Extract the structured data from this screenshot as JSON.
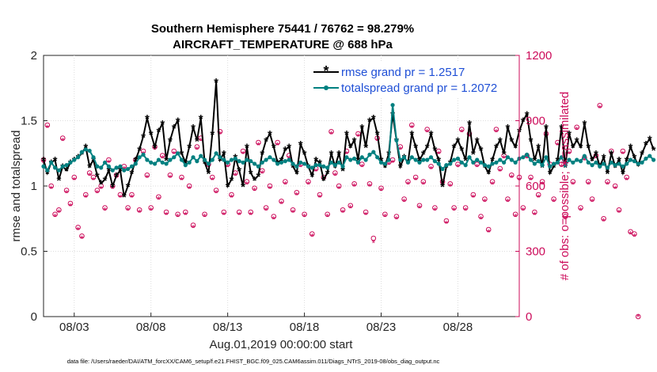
{
  "chart_data": {
    "type": "line",
    "title": "Southern Hemisphere 75441 / 76762 = 98.279%",
    "subtitle": "AIRCRAFT_TEMPERATURE @ 688 hPa",
    "xlabel": "Aug.01,2019 00:00:00 start",
    "ylabel": "rmse and totalspread",
    "ylabel_right": "# of obs: o=possible; ∗=assimilated",
    "footer": "data file: /Users/raeder/DAI/ATM_forcXX/CAM6_setup/f.e21.FHIST_BGC.f09_025.CAM6assim.011/Diags_NTrS_2019-08/obs_diag_output.nc",
    "x_start_day": 1.0,
    "step_days": 0.25,
    "xlim": [
      1.0,
      32.0
    ],
    "ylim": [
      0,
      2
    ],
    "ylim_right": [
      0,
      1200
    ],
    "x_tick_labels": [
      "08/03",
      "08/08",
      "08/13",
      "08/18",
      "08/23",
      "08/28"
    ],
    "x_tick_days": [
      3,
      8,
      13,
      18,
      23,
      28
    ],
    "y_ticks": [
      "0",
      "0.5",
      "1",
      "1.5",
      "2"
    ],
    "y_ticks_right": [
      "0",
      "300",
      "600",
      "900",
      "1200"
    ],
    "legend_position": "top-right",
    "series": [
      {
        "name": "rmse grand pr = 1.2517",
        "color": "#000000",
        "values": [
          1.2,
          1.1,
          1.18,
          1.2,
          1.05,
          1.15,
          1.12,
          1.18,
          1.2,
          1.22,
          1.25,
          1.3,
          1.15,
          1.2,
          1.08,
          1.02,
          1.05,
          1.12,
          1.0,
          1.08,
          1.12,
          0.92,
          1.0,
          1.1,
          1.2,
          1.28,
          1.38,
          1.52,
          1.4,
          1.3,
          1.42,
          1.48,
          1.2,
          1.35,
          1.45,
          1.5,
          1.25,
          1.18,
          1.3,
          1.45,
          1.35,
          1.52,
          1.18,
          1.1,
          1.4,
          1.8,
          1.2,
          1.25,
          1.0,
          1.05,
          1.22,
          1.12,
          1.0,
          1.3,
          1.1,
          1.05,
          1.08,
          1.25,
          1.35,
          1.4,
          1.3,
          1.18,
          1.2,
          1.28,
          1.3,
          1.15,
          1.1,
          1.32,
          1.25,
          1.15,
          1.08,
          1.2,
          1.18,
          1.05,
          1.1,
          1.25,
          1.15,
          1.25,
          1.12,
          1.4,
          1.3,
          1.35,
          1.2,
          1.45,
          1.3,
          1.5,
          1.52,
          1.4,
          1.2,
          1.15,
          1.25,
          1.55,
          1.35,
          1.15,
          1.22,
          1.18,
          1.4,
          1.3,
          1.2,
          1.25,
          1.3,
          1.4,
          1.28,
          1.2,
          1.0,
          1.15,
          1.18,
          1.3,
          1.35,
          1.28,
          1.2,
          1.48,
          1.25,
          1.35,
          1.28,
          1.15,
          1.1,
          1.2,
          1.3,
          1.35,
          1.25,
          1.45,
          1.35,
          1.3,
          1.42,
          1.5,
          1.55,
          1.35,
          1.2,
          1.3,
          1.15,
          1.45,
          1.1,
          1.15,
          1.2,
          1.45,
          1.15,
          1.4,
          1.3,
          1.35,
          1.3,
          1.48,
          1.3,
          1.2,
          1.25,
          1.15,
          1.22,
          1.1,
          1.25,
          1.15,
          1.2,
          1.1,
          1.2,
          1.3,
          1.22,
          1.16,
          1.25,
          1.32,
          1.36,
          1.28
        ]
      },
      {
        "name": "totalspread grand pr = 1.2072",
        "color": "#008080",
        "values": [
          1.15,
          1.12,
          1.18,
          1.14,
          1.12,
          1.15,
          1.16,
          1.18,
          1.2,
          1.22,
          1.26,
          1.28,
          1.27,
          1.22,
          1.15,
          1.14,
          1.18,
          1.15,
          1.12,
          1.14,
          1.15,
          1.12,
          1.13,
          1.15,
          1.17,
          1.22,
          1.24,
          1.2,
          1.18,
          1.17,
          1.2,
          1.18,
          1.17,
          1.2,
          1.22,
          1.25,
          1.2,
          1.16,
          1.18,
          1.22,
          1.19,
          1.23,
          1.2,
          1.17,
          1.2,
          1.25,
          1.22,
          1.2,
          1.18,
          1.2,
          1.21,
          1.19,
          1.18,
          1.2,
          1.19,
          1.17,
          1.15,
          1.18,
          1.2,
          1.22,
          1.2,
          1.17,
          1.18,
          1.19,
          1.2,
          1.17,
          1.15,
          1.18,
          1.17,
          1.15,
          1.14,
          1.16,
          1.16,
          1.15,
          1.14,
          1.18,
          1.16,
          1.18,
          1.15,
          1.22,
          1.2,
          1.21,
          1.18,
          1.22,
          1.2,
          1.24,
          1.26,
          1.22,
          1.18,
          1.17,
          1.2,
          1.62,
          1.35,
          1.2,
          1.22,
          1.18,
          1.22,
          1.2,
          1.18,
          1.2,
          1.2,
          1.22,
          1.19,
          1.17,
          1.13,
          1.16,
          1.17,
          1.2,
          1.21,
          1.18,
          1.16,
          1.22,
          1.18,
          1.2,
          1.18,
          1.16,
          1.15,
          1.17,
          1.18,
          1.2,
          1.18,
          1.22,
          1.2,
          1.18,
          1.21,
          1.22,
          1.24,
          1.2,
          1.17,
          1.19,
          1.16,
          1.22,
          1.15,
          1.17,
          1.18,
          1.22,
          1.16,
          1.2,
          1.18,
          1.2,
          1.19,
          1.23,
          1.18,
          1.16,
          1.18,
          1.15,
          1.17,
          1.14,
          1.18,
          1.16,
          1.17,
          1.15,
          1.17,
          1.2,
          1.19,
          1.17,
          1.18,
          1.21,
          1.23,
          1.2
        ]
      }
    ],
    "obs_series": [
      {
        "name": "possible",
        "marker": "o",
        "axis": "right",
        "color": "#cc0b5a",
        "values": [
          720,
          880,
          600,
          470,
          490,
          820,
          580,
          520,
          640,
          410,
          370,
          560,
          660,
          640,
          580,
          600,
          500,
          720,
          600,
          650,
          560,
          690,
          500,
          560,
          720,
          490,
          760,
          650,
          500,
          780,
          550,
          740,
          480,
          650,
          760,
          470,
          640,
          480,
          600,
          420,
          780,
          820,
          470,
          700,
          640,
          580,
          850,
          480,
          700,
          560,
          660,
          480,
          760,
          620,
          480,
          590,
          800,
          670,
          500,
          600,
          460,
          800,
          530,
          620,
          740,
          490,
          570,
          700,
          470,
          620,
          380,
          680,
          560,
          640,
          470,
          850,
          660,
          600,
          490,
          760,
          510,
          610,
          840,
          700,
          480,
          610,
          360,
          820,
          590,
          470,
          710,
          720,
          460,
          780,
          540,
          620,
          880,
          640,
          510,
          620,
          860,
          690,
          500,
          760,
          620,
          440,
          610,
          500,
          700,
          860,
          500,
          840,
          560,
          700,
          460,
          540,
          400,
          620,
          860,
          680,
          740,
          540,
          650,
          470,
          640,
          500,
          740,
          640,
          480,
          560,
          620,
          840,
          700,
          540,
          800,
          700,
          460,
          760,
          620,
          870,
          500,
          730,
          620,
          540,
          740,
          970,
          450,
          620,
          760,
          600,
          490,
          760,
          640,
          390,
          380,
          0
        ]
      },
      {
        "name": "assimilated",
        "marker": "*",
        "axis": "right",
        "color": "#cc0b5a",
        "values": [
          710,
          870,
          590,
          460,
          480,
          810,
          570,
          510,
          630,
          400,
          360,
          550,
          650,
          630,
          570,
          590,
          490,
          710,
          590,
          640,
          550,
          680,
          490,
          550,
          710,
          480,
          750,
          640,
          490,
          770,
          540,
          730,
          470,
          640,
          750,
          460,
          630,
          470,
          590,
          410,
          770,
          810,
          460,
          690,
          630,
          570,
          840,
          470,
          690,
          550,
          650,
          470,
          750,
          610,
          470,
          580,
          790,
          660,
          490,
          590,
          450,
          790,
          520,
          610,
          730,
          480,
          560,
          690,
          460,
          610,
          370,
          670,
          550,
          630,
          460,
          840,
          650,
          590,
          480,
          750,
          500,
          600,
          830,
          690,
          470,
          600,
          340,
          810,
          580,
          460,
          700,
          710,
          450,
          770,
          530,
          610,
          870,
          630,
          500,
          610,
          850,
          680,
          490,
          750,
          610,
          430,
          600,
          490,
          690,
          850,
          490,
          830,
          550,
          690,
          450,
          530,
          390,
          610,
          850,
          670,
          730,
          530,
          640,
          460,
          630,
          490,
          730,
          630,
          470,
          550,
          610,
          830,
          690,
          530,
          790,
          690,
          450,
          750,
          610,
          860,
          490,
          720,
          610,
          530,
          730,
          960,
          440,
          610,
          750,
          590,
          480,
          750,
          630,
          380,
          370,
          0
        ]
      }
    ]
  }
}
